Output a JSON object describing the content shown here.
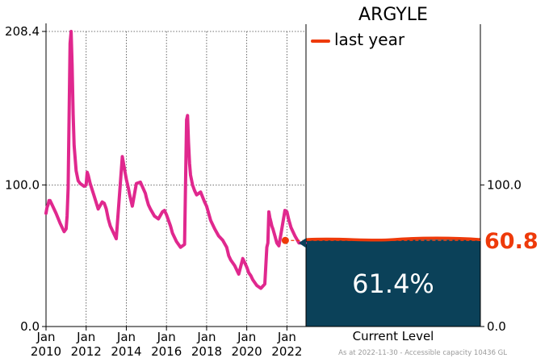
{
  "chart_data": {
    "type": "line",
    "title": "ARGYLE",
    "legend": {
      "label": "last year",
      "color": "#ee3a0a",
      "placement": "top"
    },
    "colors": {
      "line": "#e0288e",
      "tank_fill": "#0b4159",
      "last_year": "#ee3a0a",
      "marker": "#0b4159"
    },
    "y_ticks": [
      "0.0",
      "100.0",
      "208.4"
    ],
    "right_ticks": [
      "0.0",
      "100.0"
    ],
    "ylim": [
      0,
      208.4
    ],
    "x_ticks": [
      {
        "top": "Jan",
        "bottom": "2010",
        "x": 2010
      },
      {
        "top": "Jan",
        "bottom": "2012",
        "x": 2012
      },
      {
        "top": "Jan",
        "bottom": "2014",
        "x": 2014
      },
      {
        "top": "Jan",
        "bottom": "2016",
        "x": 2016
      },
      {
        "top": "Jan",
        "bottom": "2018",
        "x": 2018
      },
      {
        "top": "Jan",
        "bottom": "2020",
        "x": 2020
      },
      {
        "top": "Jan",
        "bottom": "2022",
        "x": 2022
      }
    ],
    "xlim": [
      2010,
      2022.95
    ],
    "series": [
      {
        "x": [
          2010.0,
          2010.05,
          2010.1,
          2010.15,
          2010.2,
          2010.3,
          2010.5,
          2010.7,
          2010.9,
          2011.0,
          2011.05,
          2011.1,
          2011.2,
          2011.25,
          2011.3,
          2011.35,
          2011.4,
          2011.5,
          2011.6,
          2011.7,
          2011.8,
          2011.9,
          2012.0,
          2012.05,
          2012.1,
          2012.2,
          2012.4,
          2012.6,
          2012.8,
          2012.9,
          2012.95,
          2013.0,
          2013.1,
          2013.2,
          2013.5,
          2013.8,
          2013.95,
          2014.0,
          2014.05,
          2014.1,
          2014.15,
          2014.2,
          2014.3,
          2014.5,
          2014.7,
          2014.95,
          2015.0,
          2015.1,
          2015.2,
          2015.4,
          2015.6,
          2015.8,
          2015.9,
          2016.0,
          2016.1,
          2016.2,
          2016.3,
          2016.5,
          2016.7,
          2016.9,
          2017.0,
          2017.05,
          2017.1,
          2017.15,
          2017.2,
          2017.3,
          2017.4,
          2017.5,
          2017.7,
          2017.9,
          2018.0,
          2018.1,
          2018.2,
          2018.4,
          2018.6,
          2018.8,
          2019.0,
          2019.1,
          2019.2,
          2019.4,
          2019.6,
          2019.8,
          2019.9,
          2020.0,
          2020.1,
          2020.2,
          2020.3,
          2020.5,
          2020.7,
          2020.9,
          2021.0,
          2021.05,
          2021.1,
          2021.15,
          2021.2,
          2021.25,
          2021.3,
          2021.4,
          2021.5,
          2021.6,
          2021.7,
          2021.9,
          2022.0,
          2022.05,
          2022.1,
          2022.2,
          2022.4,
          2022.6,
          2022.8,
          2022.9
        ],
        "y": [
          80,
          84,
          86,
          89,
          89,
          86,
          80,
          73,
          67,
          69,
          78,
          98,
          200,
          208.4,
          185,
          150,
          128,
          110,
          103,
          101,
          100,
          99,
          100,
          109,
          107,
          101,
          92,
          83,
          88,
          87,
          85,
          83,
          76,
          71,
          62,
          120,
          108,
          104,
          101,
          98,
          94,
          91,
          85,
          101,
          102,
          94,
          91,
          86,
          83,
          78,
          76,
          81,
          82,
          79,
          75,
          71,
          66,
          60,
          56,
          58,
          146,
          149,
          130,
          115,
          107,
          100,
          96,
          93,
          95,
          88,
          85,
          80,
          75,
          69,
          64,
          61,
          56,
          50,
          47,
          43,
          37,
          48,
          45,
          42,
          38,
          36,
          33,
          29,
          27,
          30,
          56,
          59,
          81,
          77,
          74,
          71,
          69,
          64,
          59,
          57,
          65,
          82,
          81,
          78,
          75,
          70,
          64,
          59,
          59,
          59
        ]
      }
    ],
    "last_year_value": 60.8,
    "last_year_x": 2021.92,
    "last_year_label": "60.8",
    "current_level_percent": 61.4,
    "current_level_label": "61.4%",
    "current_level_axis_label": "Current Level",
    "footnote": "As at 2022-11-30 - Accessible capacity 10436 GL"
  }
}
